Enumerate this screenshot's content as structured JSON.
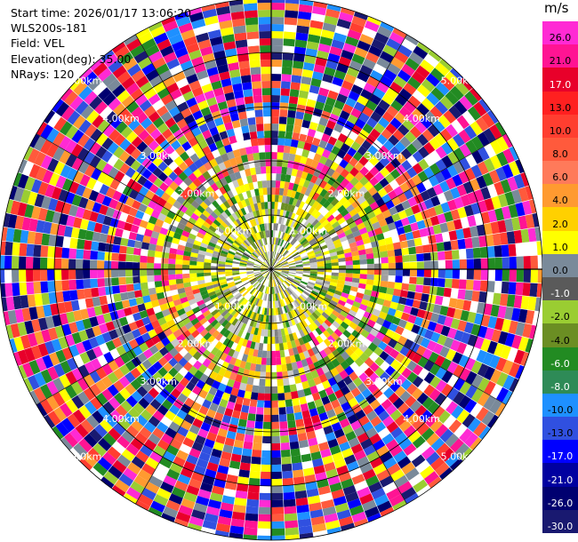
{
  "info": {
    "start_time": "Start time: 2026/01/17 13:06:20",
    "site": "WLS200s-181",
    "field": "Field: VEL",
    "elevation": "Elevation(deg): 35.00",
    "nrays": "NRays: 120"
  },
  "range_rings": [
    {
      "label": "1.00km",
      "km": 1
    },
    {
      "label": "2.00km",
      "km": 2
    },
    {
      "label": "3.00km",
      "km": 3
    },
    {
      "label": "4.00km",
      "km": 4
    },
    {
      "label": "5.00km",
      "km": 5
    }
  ],
  "colorbar": {
    "unit": "m/s",
    "ticks": [
      "26.0",
      "21.0",
      "17.0",
      "13.0",
      "10.0",
      "8.0",
      "6.0",
      "4.0",
      "2.0",
      "1.0",
      "0.0",
      "-1.0",
      "-2.0",
      "-4.0",
      "-6.0",
      "-8.0",
      "-10.0",
      "-13.0",
      "-17.0",
      "-21.0",
      "-26.0",
      "-30.0"
    ],
    "colors": [
      "#ff2ad4",
      "#ff1493",
      "#e8002a",
      "#ff2020",
      "#ff3e30",
      "#ff5a3c",
      "#ff7a5a",
      "#ff9a30",
      "#ffd000",
      "#ffff00",
      "#7a8a9a",
      "#5a5a5a",
      "#9acd32",
      "#6b8e23",
      "#228b22",
      "#2e8b57",
      "#1e90ff",
      "#3050e0",
      "#0000ff",
      "#0000a0",
      "#000070",
      "#191970"
    ]
  }
}
